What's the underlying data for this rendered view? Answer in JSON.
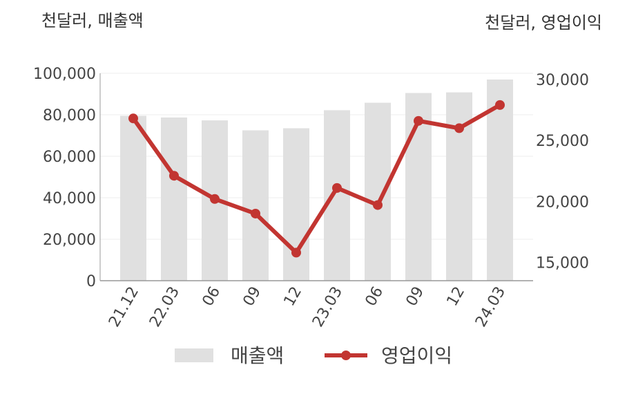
{
  "chart_data": {
    "type": "bar+line",
    "left_axis_unit": "천달러, 매출액",
    "right_axis_unit": "천달러, 영업이익",
    "categories": [
      "21.12",
      "22.03",
      "06",
      "09",
      "12",
      "23.03",
      "06",
      "09",
      "12",
      "24.03"
    ],
    "left_ylim": [
      0,
      100000
    ],
    "left_ticks": [
      "100,000",
      "80,000",
      "60,000",
      "40,000",
      "20,000",
      "0"
    ],
    "right_ylim": [
      13500,
      30500
    ],
    "right_ticks": [
      "30,000",
      "25,000",
      "20,000",
      "15,000"
    ],
    "series": [
      {
        "name": "매출액",
        "kind": "bar",
        "axis": "left",
        "color": "#e0e0e0",
        "values": [
          79500,
          78700,
          77300,
          72500,
          73500,
          82200,
          85800,
          90500,
          90800,
          97000
        ]
      },
      {
        "name": "영업이익",
        "kind": "line",
        "axis": "right",
        "color": "#c23531",
        "values": [
          26800,
          22100,
          20200,
          19000,
          15800,
          21100,
          19700,
          26600,
          26000,
          27900
        ]
      }
    ],
    "grid": true,
    "legend_position": "bottom"
  }
}
